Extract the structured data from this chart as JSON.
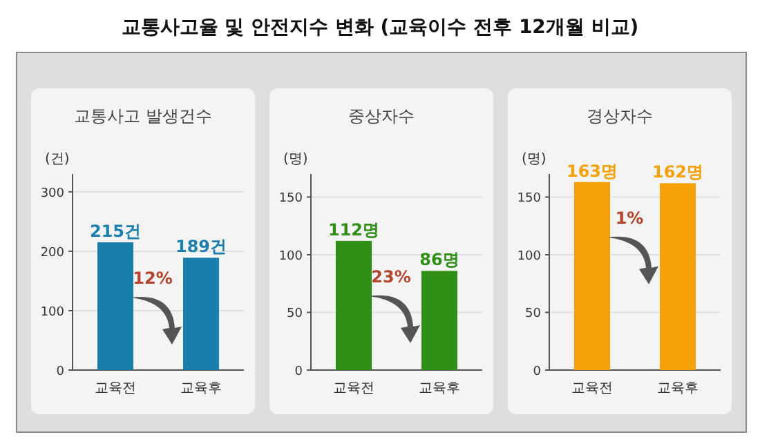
{
  "chart_data": [
    {
      "type": "bar",
      "title": "교통사고율 및 안전지수 변화 (교육이수 전후 12개월 비교)",
      "subtitle": "교통사고 발생건수",
      "ylabel": "(건)",
      "categories": [
        "교육전",
        "교육후"
      ],
      "values": [
        215,
        189
      ],
      "value_labels": [
        "215건",
        "189건"
      ],
      "color": "#1b7fae",
      "ylim": [
        0,
        330
      ],
      "yticks": [
        0,
        100,
        200,
        300
      ],
      "grid": "y",
      "annotations": [
        "12%"
      ]
    },
    {
      "type": "bar",
      "subtitle": "중상자수",
      "ylabel": "(명)",
      "categories": [
        "교육전",
        "교육후"
      ],
      "values": [
        112,
        86
      ],
      "value_labels": [
        "112명",
        "86명"
      ],
      "color": "#2f8f17",
      "ylim": [
        0,
        170
      ],
      "yticks": [
        0,
        50,
        100,
        150
      ],
      "grid": "y",
      "annotations": [
        "23%"
      ]
    },
    {
      "type": "bar",
      "subtitle": "경상자수",
      "ylabel": "(명)",
      "categories": [
        "교육전",
        "교육후"
      ],
      "values": [
        163,
        162
      ],
      "value_labels": [
        "163명",
        "162명"
      ],
      "color": "#f7a10a",
      "ylim": [
        0,
        170
      ],
      "yticks": [
        0,
        50,
        100,
        150
      ],
      "grid": "y",
      "annotations": [
        "1%"
      ]
    }
  ]
}
